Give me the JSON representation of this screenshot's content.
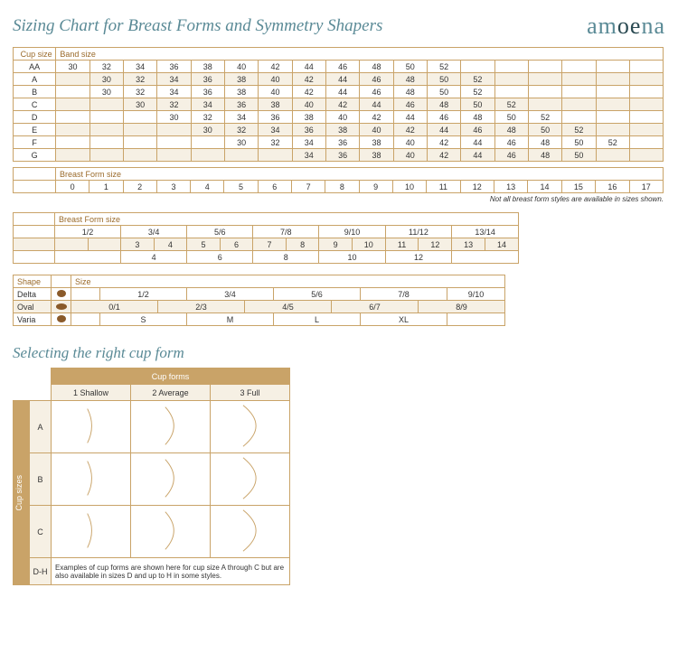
{
  "header": {
    "title": "Sizing Chart for Breast Forms and Symmetry Shapers",
    "brand": "amoena"
  },
  "sizing": {
    "cup_label": "Cup size",
    "band_label": "Band size",
    "cups": [
      "AA",
      "A",
      "B",
      "C",
      "D",
      "E",
      "F",
      "G"
    ],
    "cols": 18,
    "rows": [
      {
        "start": 0,
        "vals": [
          "30",
          "32",
          "34",
          "36",
          "38",
          "40",
          "42",
          "44",
          "46",
          "48",
          "50",
          "52"
        ]
      },
      {
        "start": 1,
        "vals": [
          "30",
          "32",
          "34",
          "36",
          "38",
          "40",
          "42",
          "44",
          "46",
          "48",
          "50",
          "52"
        ]
      },
      {
        "start": 1,
        "vals": [
          "30",
          "32",
          "34",
          "36",
          "38",
          "40",
          "42",
          "44",
          "46",
          "48",
          "50",
          "52"
        ]
      },
      {
        "start": 2,
        "vals": [
          "30",
          "32",
          "34",
          "36",
          "38",
          "40",
          "42",
          "44",
          "46",
          "48",
          "50",
          "52"
        ]
      },
      {
        "start": 3,
        "vals": [
          "30",
          "32",
          "34",
          "36",
          "38",
          "40",
          "42",
          "44",
          "46",
          "48",
          "50",
          "52"
        ]
      },
      {
        "start": 4,
        "vals": [
          "30",
          "32",
          "34",
          "36",
          "38",
          "40",
          "42",
          "44",
          "46",
          "48",
          "50",
          "52"
        ]
      },
      {
        "start": 5,
        "vals": [
          "30",
          "32",
          "34",
          "36",
          "38",
          "40",
          "42",
          "44",
          "46",
          "48",
          "50",
          "52"
        ]
      },
      {
        "start": 7,
        "vals": [
          "34",
          "36",
          "38",
          "40",
          "42",
          "44",
          "46",
          "48",
          "50"
        ]
      }
    ]
  },
  "bf1": {
    "label": "Breast Form size",
    "sizes": [
      "0",
      "1",
      "2",
      "3",
      "4",
      "5",
      "6",
      "7",
      "8",
      "9",
      "10",
      "11",
      "12",
      "13",
      "14",
      "15",
      "16",
      "17"
    ],
    "note": "Not all breast form styles are available in sizes shown."
  },
  "bf2": {
    "label": "Breast Form size",
    "row1": [
      "1/2",
      "3/4",
      "5/6",
      "7/8",
      "9/10",
      "11/12",
      "13/14"
    ],
    "row2": [
      "3",
      "4",
      "5",
      "6",
      "7",
      "8",
      "9",
      "10",
      "11",
      "12",
      "13",
      "14"
    ],
    "row3": [
      "4",
      "6",
      "8",
      "10",
      "12"
    ]
  },
  "shape": {
    "h1": "Shape",
    "h2": "Size",
    "rows": [
      {
        "name": "Delta",
        "icon": "blob",
        "sizes": [
          "1/2",
          "3/4",
          "5/6",
          "7/8",
          "9/10"
        ],
        "offset": 1
      },
      {
        "name": "Oval",
        "icon": "oval",
        "sizes": [
          "0/1",
          "2/3",
          "4/5",
          "6/7",
          "8/9"
        ],
        "offset": 0
      },
      {
        "name": "Varia",
        "icon": "blob",
        "sizes": [
          "S",
          "M",
          "L",
          "XL"
        ],
        "offset": 1
      }
    ]
  },
  "cupform": {
    "subtitle": "Selecting the right cup form",
    "header": "Cup forms",
    "cols": [
      "1 Shallow",
      "2 Average",
      "3 Full"
    ],
    "side": "Cup sizes",
    "rows": [
      "A",
      "B",
      "C"
    ],
    "dh_label": "D-H",
    "dh_text": "Examples of cup forms are shown here for cup size A through C but are also available in sizes D and up to H in some styles.",
    "curve_color": "#c9a368"
  }
}
